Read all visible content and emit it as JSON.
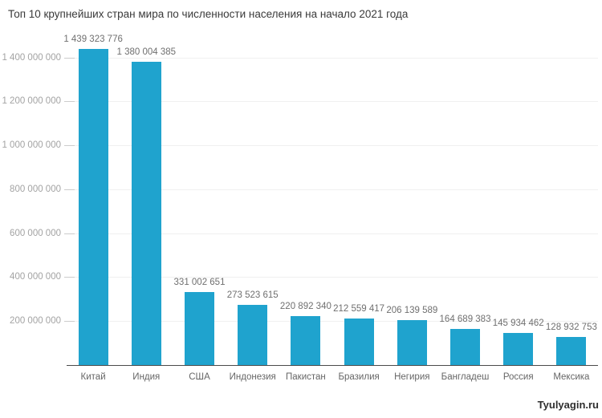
{
  "page": {
    "watermark": "Tyulyagin.ru"
  },
  "chart_data": {
    "type": "bar",
    "title": "Топ 10 крупнейших стран мира по численности населения на начало 2021 года",
    "categories": [
      "Китай",
      "Индия",
      "США",
      "Индонезия",
      "Пакистан",
      "Бразилия",
      "Негирия",
      "Бангладеш",
      "Россия",
      "Мексика"
    ],
    "values": [
      1439323776,
      1380004385,
      331002651,
      273523615,
      220892340,
      212559417,
      206139589,
      164689383,
      145934462,
      128932753
    ],
    "value_labels": [
      "1 439 323 776",
      "1 380 004 385",
      "331 002 651",
      "273 523 615",
      "220 892 340",
      "212 559 417",
      "206 139 589",
      "164 689 383",
      "145 934 462",
      "128 932 753"
    ],
    "yticks": [
      {
        "value": 200000000,
        "label": "200 000 000"
      },
      {
        "value": 400000000,
        "label": "400 000 000"
      },
      {
        "value": 600000000,
        "label": "600 000 000"
      },
      {
        "value": 800000000,
        "label": "800 000 000"
      },
      {
        "value": 1000000000,
        "label": "1 000 000 000"
      },
      {
        "value": 1200000000,
        "label": "1 200 000 000"
      },
      {
        "value": 1400000000,
        "label": "1 400 000 000"
      }
    ],
    "ylim": [
      0,
      1515000000
    ],
    "xlabel": "",
    "ylabel": "",
    "grid": "horizontal",
    "legend": "none",
    "colors": {
      "bar": "#1fa3ce",
      "grid_line": "#f0f0f0",
      "tick_mark": "#cccccc",
      "axis_line": "#4a4a4a",
      "ytick_label": "#a3a3a3",
      "value_label": "#6f6f6f",
      "category_label": "#666666",
      "title": "#3a3a3a",
      "watermark": "#2e2e2e",
      "background": "#ffffff"
    }
  }
}
